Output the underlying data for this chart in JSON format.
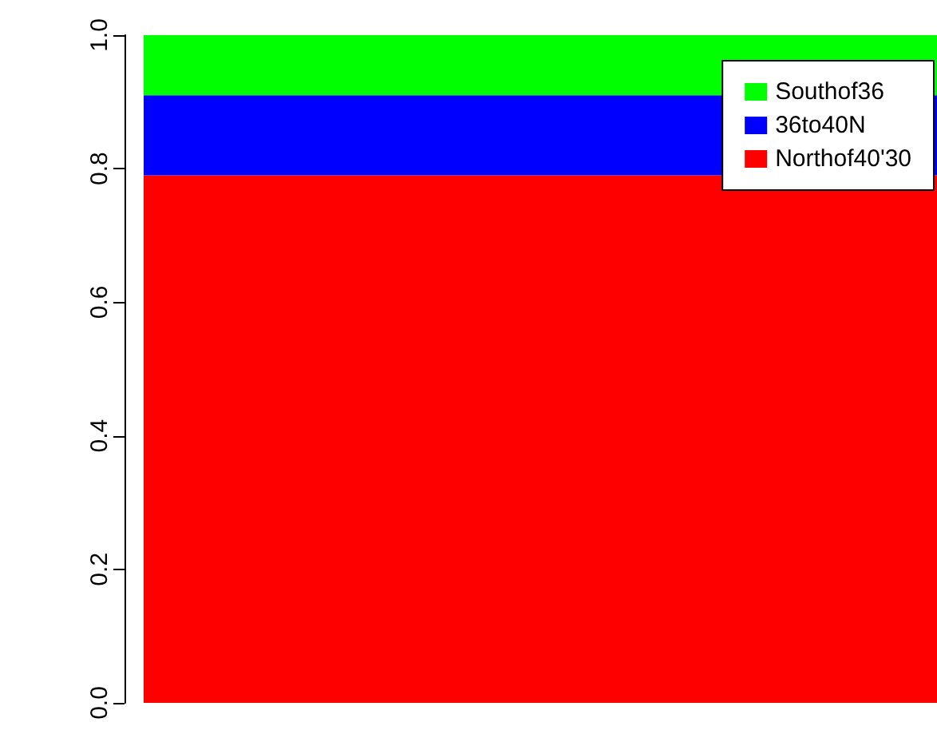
{
  "chart_data": {
    "type": "bar",
    "stacked": true,
    "categories": [
      null
    ],
    "series": [
      {
        "name": "Northof40'30",
        "color": "#ff0000",
        "values": [
          0.79
        ]
      },
      {
        "name": "36to40N",
        "color": "#0000ff",
        "values": [
          0.12
        ]
      },
      {
        "name": "Southof36",
        "color": "#00ff00",
        "values": [
          0.09
        ]
      }
    ],
    "ylim": [
      0,
      1
    ],
    "yticks": [
      {
        "value": 0,
        "label": "0.0"
      },
      {
        "value": 0.2,
        "label": "0.2"
      },
      {
        "value": 0.4,
        "label": "0.4"
      },
      {
        "value": 0.6,
        "label": "0.6"
      },
      {
        "value": 0.8,
        "label": "0.8"
      },
      {
        "value": 1,
        "label": "1.0"
      }
    ],
    "grid": false,
    "legend": "top right"
  }
}
